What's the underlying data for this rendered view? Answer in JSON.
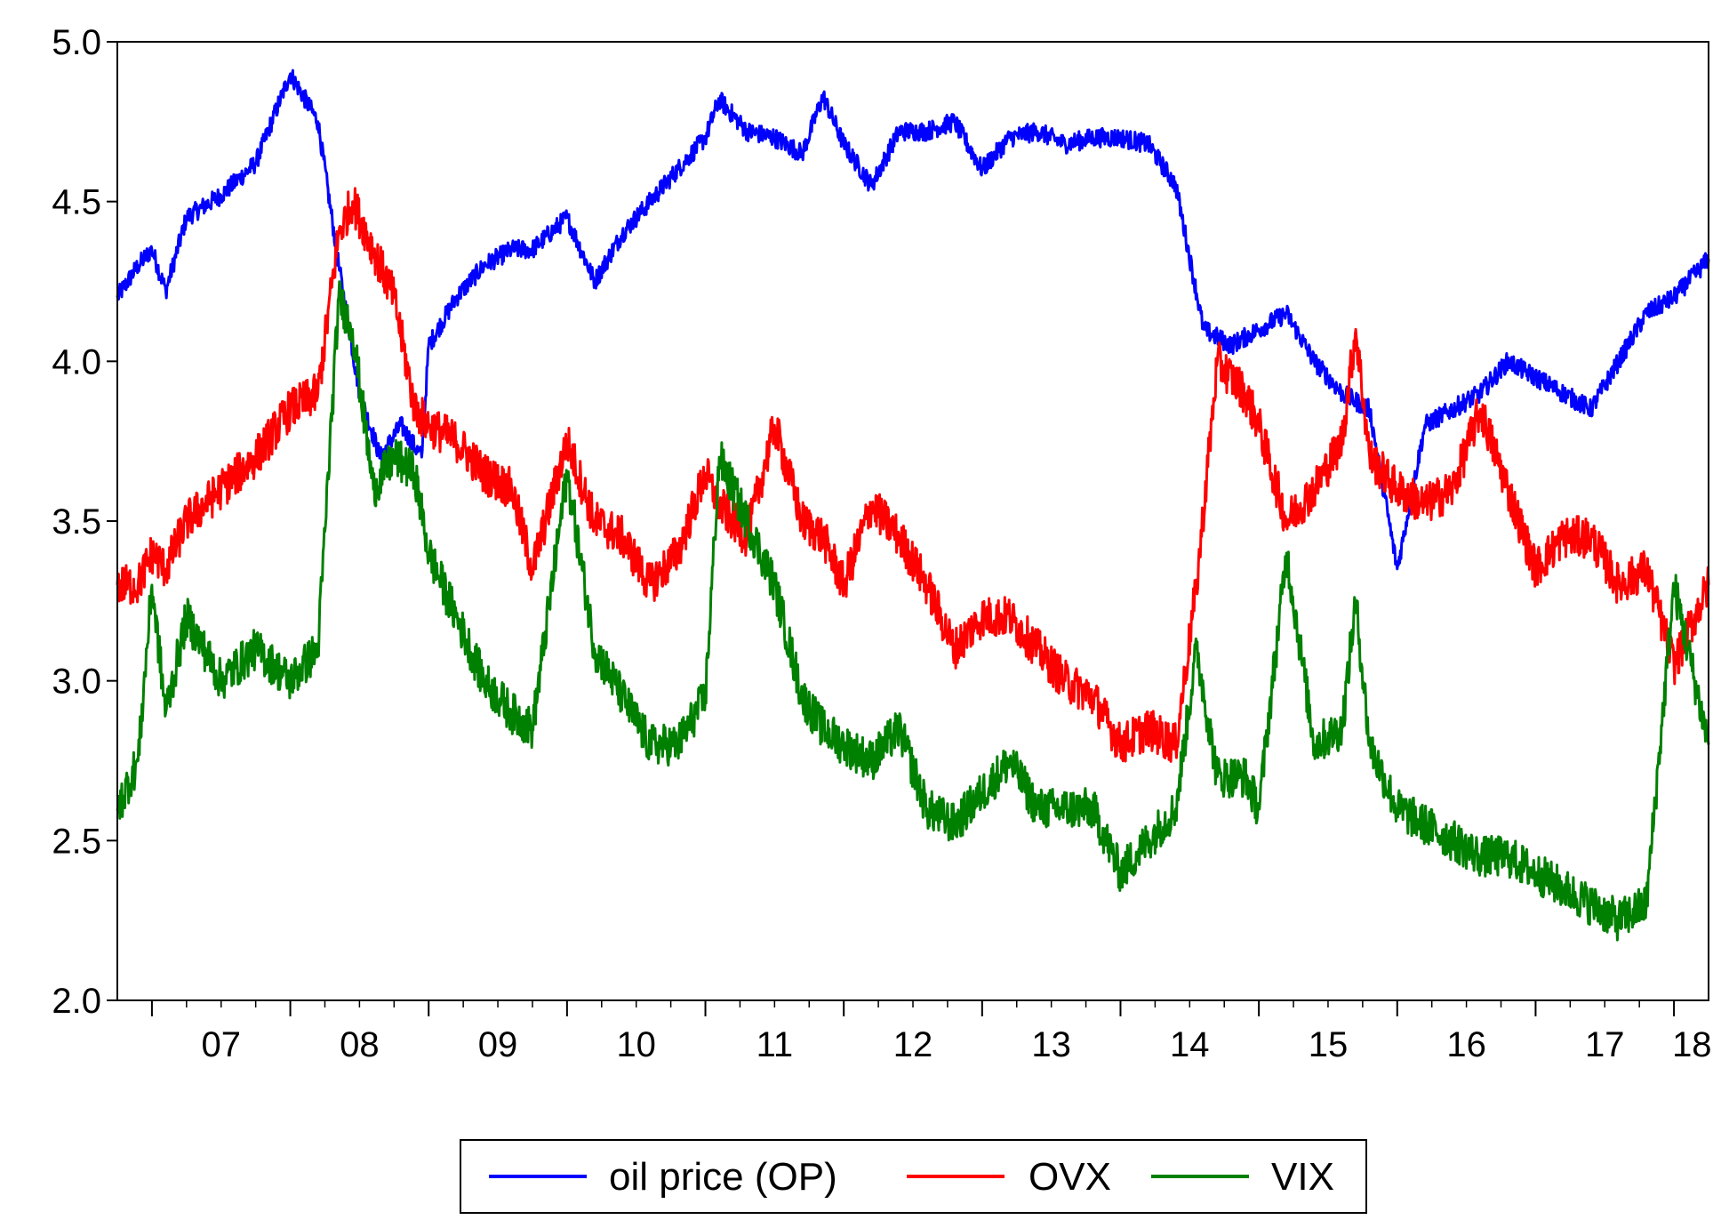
{
  "chart_data": {
    "type": "line",
    "title": "",
    "xlabel": "",
    "ylabel": "",
    "x_start": 2006.75,
    "x_end": 2018.25,
    "ylim": [
      2.0,
      5.0
    ],
    "y_ticks": [
      2.0,
      2.5,
      3.0,
      3.5,
      4.0,
      4.5,
      5.0
    ],
    "y_tick_labels": [
      "2.0",
      "2.5",
      "3.0",
      "3.5",
      "4.0",
      "4.5",
      "5.0"
    ],
    "x_tick_labels": [
      "07",
      "08",
      "09",
      "10",
      "11",
      "12",
      "13",
      "14",
      "15",
      "16",
      "17",
      "18"
    ],
    "x_tick_years": [
      2007,
      2008,
      2009,
      2010,
      2011,
      2012,
      2013,
      2014,
      2015,
      2016,
      2017,
      2018
    ],
    "grid": false,
    "legend_position": "bottom-center",
    "series": [
      {
        "name": "oil price (OP)",
        "color": "#0000ff",
        "x": [
          2006.75,
          2006.9,
          2007.0,
          2007.1,
          2007.25,
          2007.5,
          2007.75,
          2008.0,
          2008.2,
          2008.35,
          2008.5,
          2008.65,
          2008.8,
          2008.95,
          2009.0,
          2009.2,
          2009.4,
          2009.6,
          2009.75,
          2010.0,
          2010.2,
          2010.4,
          2010.6,
          2010.8,
          2011.0,
          2011.1,
          2011.3,
          2011.5,
          2011.7,
          2011.85,
          2012.0,
          2012.2,
          2012.4,
          2012.6,
          2012.8,
          2013.0,
          2013.2,
          2013.4,
          2013.6,
          2013.8,
          2014.0,
          2014.2,
          2014.4,
          2014.6,
          2014.8,
          2015.0,
          2015.2,
          2015.4,
          2015.6,
          2015.8,
          2016.0,
          2016.2,
          2016.4,
          2016.6,
          2016.8,
          2017.0,
          2017.2,
          2017.4,
          2017.6,
          2017.8,
          2018.0,
          2018.25
        ],
        "values": [
          4.2,
          4.3,
          4.35,
          4.22,
          4.45,
          4.52,
          4.62,
          4.9,
          4.75,
          4.3,
          3.9,
          3.7,
          3.8,
          3.7,
          4.05,
          4.2,
          4.3,
          4.35,
          4.35,
          4.45,
          4.25,
          4.4,
          4.5,
          4.6,
          4.7,
          4.82,
          4.72,
          4.7,
          4.65,
          4.83,
          4.68,
          4.55,
          4.72,
          4.72,
          4.75,
          4.6,
          4.7,
          4.72,
          4.68,
          4.7,
          4.7,
          4.68,
          4.55,
          4.1,
          4.05,
          4.1,
          4.15,
          4.0,
          3.9,
          3.85,
          3.35,
          3.8,
          3.85,
          3.9,
          4.0,
          3.95,
          3.9,
          3.85,
          4.0,
          4.15,
          4.2,
          4.32
        ]
      },
      {
        "name": "OVX",
        "color": "#ff0000",
        "x": [
          2006.75,
          2006.9,
          2007.0,
          2007.1,
          2007.25,
          2007.5,
          2007.75,
          2008.0,
          2008.2,
          2008.35,
          2008.45,
          2008.6,
          2008.75,
          2008.9,
          2009.0,
          2009.2,
          2009.4,
          2009.6,
          2009.75,
          2010.0,
          2010.2,
          2010.4,
          2010.6,
          2010.8,
          2011.0,
          2011.1,
          2011.3,
          2011.5,
          2011.7,
          2011.85,
          2012.0,
          2012.2,
          2012.4,
          2012.6,
          2012.8,
          2013.0,
          2013.2,
          2013.4,
          2013.6,
          2013.8,
          2014.0,
          2014.2,
          2014.4,
          2014.55,
          2014.7,
          2014.9,
          2015.0,
          2015.2,
          2015.4,
          2015.6,
          2015.7,
          2015.8,
          2016.0,
          2016.2,
          2016.4,
          2016.6,
          2016.8,
          2017.0,
          2017.2,
          2017.4,
          2017.6,
          2017.8,
          2018.0,
          2018.25
        ],
        "values": [
          3.3,
          3.3,
          3.4,
          3.35,
          3.5,
          3.6,
          3.7,
          3.85,
          3.9,
          4.4,
          4.5,
          4.35,
          4.2,
          3.85,
          3.8,
          3.75,
          3.65,
          3.6,
          3.35,
          3.75,
          3.5,
          3.45,
          3.3,
          3.4,
          3.65,
          3.55,
          3.45,
          3.8,
          3.5,
          3.45,
          3.3,
          3.55,
          3.45,
          3.3,
          3.1,
          3.2,
          3.2,
          3.1,
          3.0,
          2.95,
          2.8,
          2.85,
          2.8,
          3.3,
          4.0,
          3.9,
          3.8,
          3.5,
          3.6,
          3.75,
          4.1,
          3.7,
          3.6,
          3.55,
          3.6,
          3.85,
          3.6,
          3.35,
          3.45,
          3.45,
          3.3,
          3.35,
          3.05,
          3.3
        ]
      },
      {
        "name": "VIX",
        "color": "#008000",
        "x": [
          2006.75,
          2006.9,
          2007.0,
          2007.1,
          2007.25,
          2007.5,
          2007.75,
          2008.0,
          2008.2,
          2008.35,
          2008.45,
          2008.6,
          2008.75,
          2008.9,
          2009.0,
          2009.2,
          2009.4,
          2009.6,
          2009.75,
          2010.0,
          2010.2,
          2010.4,
          2010.6,
          2010.8,
          2011.0,
          2011.1,
          2011.3,
          2011.5,
          2011.7,
          2011.85,
          2012.0,
          2012.2,
          2012.4,
          2012.6,
          2012.8,
          2013.0,
          2013.2,
          2013.4,
          2013.6,
          2013.8,
          2014.0,
          2014.2,
          2014.4,
          2014.55,
          2014.7,
          2014.9,
          2015.0,
          2015.2,
          2015.4,
          2015.6,
          2015.7,
          2015.8,
          2016.0,
          2016.2,
          2016.4,
          2016.6,
          2016.8,
          2017.0,
          2017.2,
          2017.4,
          2017.6,
          2017.8,
          2018.0,
          2018.25
        ],
        "values": [
          2.6,
          2.75,
          3.3,
          2.9,
          3.2,
          3.0,
          3.1,
          3.0,
          3.1,
          4.2,
          4.1,
          3.6,
          3.7,
          3.65,
          3.4,
          3.2,
          3.0,
          2.9,
          2.85,
          3.65,
          3.1,
          2.95,
          2.8,
          2.8,
          2.95,
          3.7,
          3.5,
          3.3,
          2.95,
          2.85,
          2.8,
          2.75,
          2.85,
          2.6,
          2.55,
          2.65,
          2.75,
          2.6,
          2.6,
          2.6,
          2.4,
          2.5,
          2.6,
          3.1,
          2.7,
          2.7,
          2.6,
          3.4,
          2.8,
          2.85,
          3.25,
          2.8,
          2.6,
          2.55,
          2.5,
          2.45,
          2.45,
          2.4,
          2.35,
          2.3,
          2.25,
          2.3,
          3.3,
          2.8
        ]
      }
    ]
  }
}
